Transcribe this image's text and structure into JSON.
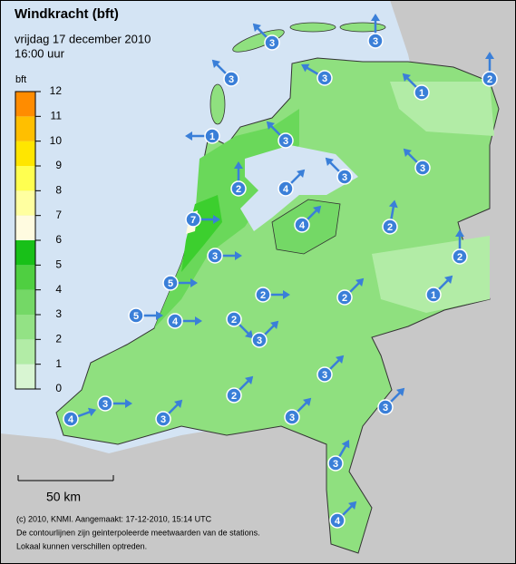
{
  "title": "Windkracht (bft)",
  "date": "vrijdag 17 december 2010",
  "time": "16:00 uur",
  "legend": {
    "title": "bft",
    "ticks": [
      0,
      1,
      2,
      3,
      4,
      5,
      6,
      7,
      8,
      9,
      10,
      11,
      12
    ],
    "colors": [
      "#d8f5d2",
      "#b2eca6",
      "#93e285",
      "#74d866",
      "#4fcf41",
      "#18c018",
      "#fffbe0",
      "#ffffa0",
      "#ffff50",
      "#ffe600",
      "#ffbf00",
      "#ff8c00"
    ]
  },
  "stations": [
    3,
    3,
    2,
    3,
    3,
    1,
    1,
    3,
    3,
    3,
    2,
    4,
    2,
    7,
    4,
    2,
    3,
    5,
    2,
    2,
    1,
    5,
    4,
    2,
    3,
    3,
    3,
    4,
    3,
    2,
    3,
    3,
    3,
    4
  ],
  "scale": "50 km",
  "footer": [
    "(c) 2010, KNMI. Aangemaakt: 17-12-2010, 15:14 UTC",
    "De contourlijnen zijn geinterpoleerde meetwaarden van de stations.",
    "Lokaal kunnen verschillen optreden."
  ]
}
